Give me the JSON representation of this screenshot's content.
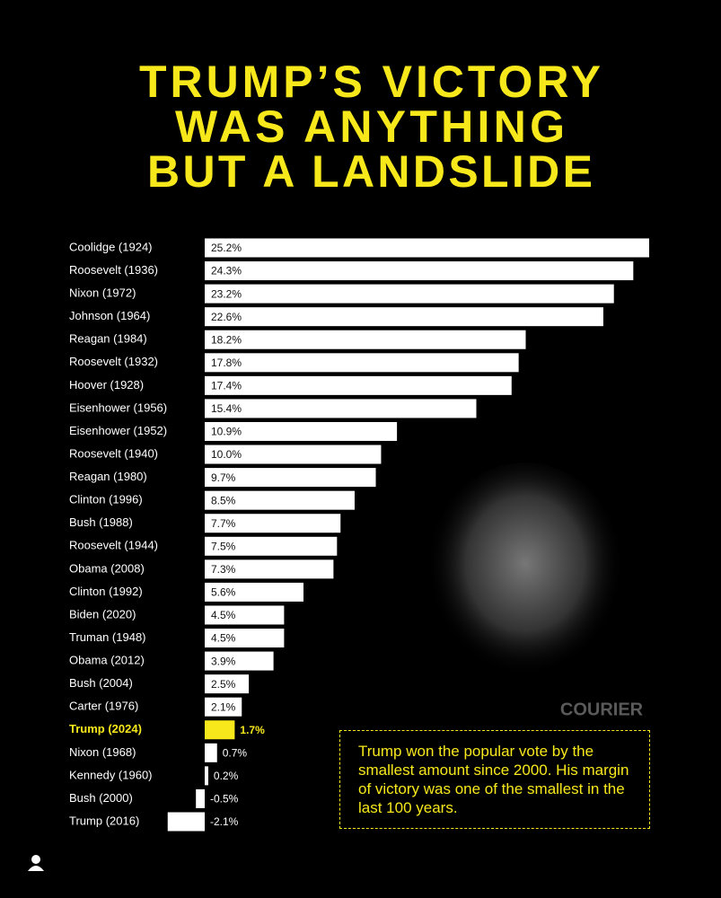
{
  "chart_data": {
    "type": "bar",
    "orientation": "horizontal",
    "title_lines": [
      "TRUMP’S VICTORY",
      "WAS ANYTHING",
      "BUT A LANDSLIDE"
    ],
    "categories": [
      "Coolidge (1924)",
      "Roosevelt (1936)",
      "Nixon (1972)",
      "Johnson (1964)",
      "Reagan (1984)",
      "Roosevelt (1932)",
      "Hoover (1928)",
      "Eisenhower (1956)",
      "Eisenhower (1952)",
      "Roosevelt (1940)",
      "Reagan (1980)",
      "Clinton (1996)",
      "Bush (1988)",
      "Roosevelt (1944)",
      "Obama (2008)",
      "Clinton (1992)",
      "Biden (2020)",
      "Truman (1948)",
      "Obama (2012)",
      "Bush (2004)",
      "Carter (1976)",
      "Trump (2024)",
      "Nixon (1968)",
      "Kennedy (1960)",
      "Bush (2000)",
      "Trump (2016)"
    ],
    "values": [
      25.2,
      24.3,
      23.2,
      22.6,
      18.2,
      17.8,
      17.4,
      15.4,
      10.9,
      10.0,
      9.7,
      8.5,
      7.7,
      7.5,
      7.3,
      5.6,
      4.5,
      4.5,
      3.9,
      2.5,
      2.1,
      1.7,
      0.7,
      0.2,
      -0.5,
      -2.1
    ],
    "value_labels": [
      "25.2%",
      "24.3%",
      "23.2%",
      "22.6%",
      "18.2%",
      "17.8%",
      "17.4%",
      "15.4%",
      "10.9%",
      "10.0%",
      "9.7%",
      "8.5%",
      "7.7%",
      "7.5%",
      "7.3%",
      "5.6%",
      "4.5%",
      "4.5%",
      "3.9%",
      "2.5%",
      "2.1%",
      "1.7%",
      "0.7%",
      "0.2%",
      "-0.5%",
      "-2.1%"
    ],
    "colors": [
      "#ffffff",
      "#ffffff",
      "#ffffff",
      "#ffffff",
      "#ffffff",
      "#ffffff",
      "#ffffff",
      "#ffffff",
      "#ffffff",
      "#ffffff",
      "#ffffff",
      "#ffffff",
      "#ffffff",
      "#ffffff",
      "#ffffff",
      "#ffffff",
      "#ffffff",
      "#ffffff",
      "#ffffff",
      "#ffffff",
      "#ffffff",
      "#f7e81c",
      "#ffffff",
      "#ffffff",
      "#ffffff",
      "#ffffff"
    ],
    "annotation": "Trump won the popular vote by the smallest amount since 2000. His margin of victory was one of the smallest in the last 100 years.",
    "brand": "COURIER"
  }
}
